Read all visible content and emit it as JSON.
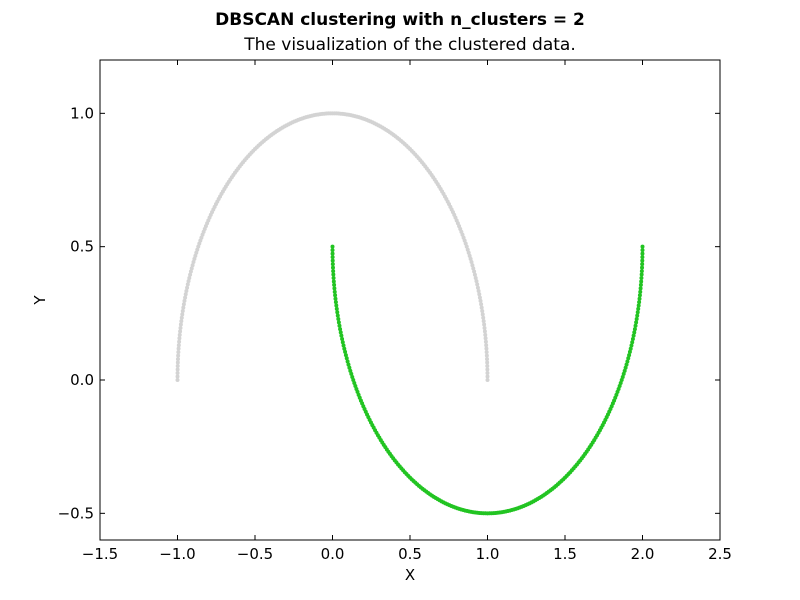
{
  "chart_data": {
    "type": "scatter",
    "title": "DBSCAN clustering with n_clusters = 2",
    "subtitle": "The visualization of the clustered data.",
    "xlabel": "X",
    "ylabel": "Y",
    "xlim": [
      -1.5,
      2.5
    ],
    "ylim": [
      -0.6,
      1.2
    ],
    "xticks": [
      "−1.5",
      "−1.0",
      "−0.5",
      "0.0",
      "0.5",
      "1.0",
      "1.5",
      "2.0",
      "2.5"
    ],
    "yticks": [
      "1.0",
      "0.5",
      "0.0",
      "−0.5"
    ],
    "grid": false,
    "series": [
      {
        "shape": "upper-moon",
        "description_of_values": "points on y = sin(theta), x = cos(theta), theta from 0 to pi",
        "x_range": [
          -1.0,
          1.0
        ],
        "y_range": [
          0.0,
          1.0
        ],
        "color": "#d3d3d3"
      },
      {
        "shape": "lower-moon",
        "description_of_values": "points on x = 1 - cos(theta), y = 0.5 - sin(theta), theta from 0 to pi",
        "x_range": [
          0.0,
          2.0
        ],
        "y_range": [
          -0.5,
          0.5
        ],
        "color": "#22c422"
      }
    ]
  }
}
